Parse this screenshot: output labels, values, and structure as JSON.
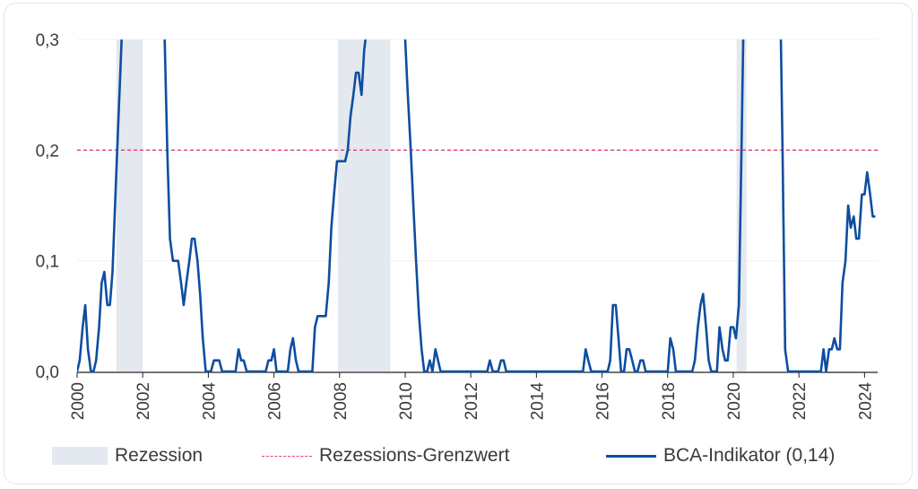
{
  "chart_data": {
    "type": "line",
    "title": "",
    "xlabel": "",
    "ylabel": "",
    "ylim": [
      0,
      0.3
    ],
    "xlim": [
      2000,
      2024.4
    ],
    "y_ticks": [
      "0,0",
      "0,1",
      "0,2",
      "0,3"
    ],
    "x_ticks": [
      "2000",
      "2002",
      "2004",
      "2006",
      "2008",
      "2010",
      "2012",
      "2014",
      "2016",
      "2018",
      "2020",
      "2022",
      "2024"
    ],
    "threshold": {
      "name": "Rezessions-Grenzwert",
      "value": 0.2,
      "color": "#e0436b"
    },
    "recessions": {
      "name": "Rezession",
      "color": "#e4e8ef",
      "periods": [
        [
          2001.2,
          2002.0
        ],
        [
          2007.95,
          2009.55
        ],
        [
          2020.1,
          2020.4
        ]
      ]
    },
    "series": [
      {
        "name": "BCA-Indikator (0,14)",
        "color": "#0d4ea0",
        "points": [
          [
            2000.0,
            0.0
          ],
          [
            2000.08,
            0.01
          ],
          [
            2000.17,
            0.04
          ],
          [
            2000.25,
            0.06
          ],
          [
            2000.33,
            0.02
          ],
          [
            2000.42,
            0.0
          ],
          [
            2000.5,
            0.0
          ],
          [
            2000.58,
            0.01
          ],
          [
            2000.67,
            0.04
          ],
          [
            2000.75,
            0.08
          ],
          [
            2000.83,
            0.09
          ],
          [
            2000.92,
            0.06
          ],
          [
            2001.0,
            0.06
          ],
          [
            2001.08,
            0.09
          ],
          [
            2001.17,
            0.16
          ],
          [
            2001.25,
            0.22
          ],
          [
            2001.33,
            0.28
          ],
          [
            2001.42,
            0.35
          ],
          [
            2002.5,
            0.4
          ],
          [
            2002.67,
            0.3
          ],
          [
            2002.75,
            0.2
          ],
          [
            2002.83,
            0.12
          ],
          [
            2002.92,
            0.1
          ],
          [
            2003.0,
            0.1
          ],
          [
            2003.08,
            0.1
          ],
          [
            2003.17,
            0.08
          ],
          [
            2003.25,
            0.06
          ],
          [
            2003.33,
            0.08
          ],
          [
            2003.42,
            0.1
          ],
          [
            2003.5,
            0.12
          ],
          [
            2003.58,
            0.12
          ],
          [
            2003.67,
            0.1
          ],
          [
            2003.75,
            0.07
          ],
          [
            2003.83,
            0.03
          ],
          [
            2003.92,
            0.0
          ],
          [
            2004.0,
            0.0
          ],
          [
            2004.08,
            0.0
          ],
          [
            2004.17,
            0.01
          ],
          [
            2004.25,
            0.01
          ],
          [
            2004.33,
            0.01
          ],
          [
            2004.42,
            0.0
          ],
          [
            2004.5,
            0.0
          ],
          [
            2004.58,
            0.0
          ],
          [
            2004.67,
            0.0
          ],
          [
            2004.75,
            0.0
          ],
          [
            2004.83,
            0.0
          ],
          [
            2004.92,
            0.02
          ],
          [
            2005.0,
            0.01
          ],
          [
            2005.08,
            0.01
          ],
          [
            2005.17,
            0.0
          ],
          [
            2005.25,
            0.0
          ],
          [
            2005.33,
            0.0
          ],
          [
            2005.42,
            0.0
          ],
          [
            2005.5,
            0.0
          ],
          [
            2005.58,
            0.0
          ],
          [
            2005.67,
            0.0
          ],
          [
            2005.75,
            0.0
          ],
          [
            2005.83,
            0.01
          ],
          [
            2005.92,
            0.01
          ],
          [
            2006.0,
            0.02
          ],
          [
            2006.08,
            0.0
          ],
          [
            2006.17,
            0.0
          ],
          [
            2006.25,
            0.0
          ],
          [
            2006.33,
            0.0
          ],
          [
            2006.42,
            0.0
          ],
          [
            2006.5,
            0.02
          ],
          [
            2006.58,
            0.03
          ],
          [
            2006.67,
            0.01
          ],
          [
            2006.75,
            0.0
          ],
          [
            2006.83,
            0.0
          ],
          [
            2006.92,
            0.0
          ],
          [
            2007.0,
            0.0
          ],
          [
            2007.08,
            0.0
          ],
          [
            2007.17,
            0.0
          ],
          [
            2007.25,
            0.04
          ],
          [
            2007.33,
            0.05
          ],
          [
            2007.42,
            0.05
          ],
          [
            2007.5,
            0.05
          ],
          [
            2007.58,
            0.05
          ],
          [
            2007.67,
            0.08
          ],
          [
            2007.75,
            0.13
          ],
          [
            2007.83,
            0.16
          ],
          [
            2007.92,
            0.19
          ],
          [
            2008.0,
            0.19
          ],
          [
            2008.08,
            0.19
          ],
          [
            2008.17,
            0.19
          ],
          [
            2008.25,
            0.2
          ],
          [
            2008.33,
            0.23
          ],
          [
            2008.42,
            0.25
          ],
          [
            2008.5,
            0.27
          ],
          [
            2008.58,
            0.27
          ],
          [
            2008.67,
            0.25
          ],
          [
            2008.75,
            0.29
          ],
          [
            2008.83,
            0.31
          ],
          [
            2009.9,
            0.4
          ],
          [
            2010.0,
            0.3
          ],
          [
            2010.08,
            0.25
          ],
          [
            2010.17,
            0.2
          ],
          [
            2010.25,
            0.15
          ],
          [
            2010.33,
            0.1
          ],
          [
            2010.42,
            0.05
          ],
          [
            2010.5,
            0.02
          ],
          [
            2010.58,
            0.0
          ],
          [
            2010.67,
            0.0
          ],
          [
            2010.75,
            0.01
          ],
          [
            2010.83,
            0.0
          ],
          [
            2010.92,
            0.02
          ],
          [
            2011.0,
            0.01
          ],
          [
            2011.08,
            0.0
          ],
          [
            2011.5,
            0.0
          ],
          [
            2012.0,
            0.0
          ],
          [
            2012.5,
            0.0
          ],
          [
            2012.58,
            0.01
          ],
          [
            2012.67,
            0.0
          ],
          [
            2012.83,
            0.0
          ],
          [
            2012.92,
            0.01
          ],
          [
            2013.0,
            0.01
          ],
          [
            2013.08,
            0.0
          ],
          [
            2013.5,
            0.0
          ],
          [
            2014.0,
            0.0
          ],
          [
            2014.5,
            0.0
          ],
          [
            2015.0,
            0.0
          ],
          [
            2015.42,
            0.0
          ],
          [
            2015.5,
            0.02
          ],
          [
            2015.58,
            0.01
          ],
          [
            2015.67,
            0.0
          ],
          [
            2015.75,
            0.0
          ],
          [
            2016.0,
            0.0
          ],
          [
            2016.17,
            0.0
          ],
          [
            2016.25,
            0.01
          ],
          [
            2016.33,
            0.06
          ],
          [
            2016.42,
            0.06
          ],
          [
            2016.5,
            0.03
          ],
          [
            2016.58,
            0.0
          ],
          [
            2016.67,
            0.0
          ],
          [
            2016.75,
            0.02
          ],
          [
            2016.83,
            0.02
          ],
          [
            2016.92,
            0.01
          ],
          [
            2017.0,
            0.0
          ],
          [
            2017.08,
            0.0
          ],
          [
            2017.17,
            0.01
          ],
          [
            2017.25,
            0.01
          ],
          [
            2017.33,
            0.0
          ],
          [
            2017.5,
            0.0
          ],
          [
            2017.75,
            0.0
          ],
          [
            2017.92,
            0.0
          ],
          [
            2018.0,
            0.0
          ],
          [
            2018.08,
            0.03
          ],
          [
            2018.17,
            0.02
          ],
          [
            2018.25,
            0.0
          ],
          [
            2018.33,
            0.0
          ],
          [
            2018.5,
            0.0
          ],
          [
            2018.75,
            0.0
          ],
          [
            2018.83,
            0.01
          ],
          [
            2018.92,
            0.04
          ],
          [
            2019.0,
            0.06
          ],
          [
            2019.08,
            0.07
          ],
          [
            2019.17,
            0.04
          ],
          [
            2019.25,
            0.01
          ],
          [
            2019.33,
            0.0
          ],
          [
            2019.42,
            0.0
          ],
          [
            2019.5,
            0.0
          ],
          [
            2019.58,
            0.04
          ],
          [
            2019.67,
            0.02
          ],
          [
            2019.75,
            0.01
          ],
          [
            2019.83,
            0.01
          ],
          [
            2019.92,
            0.04
          ],
          [
            2020.0,
            0.04
          ],
          [
            2020.08,
            0.03
          ],
          [
            2020.17,
            0.06
          ],
          [
            2020.25,
            0.2
          ],
          [
            2020.33,
            0.35
          ],
          [
            2021.4,
            0.4
          ],
          [
            2021.5,
            0.2
          ],
          [
            2021.58,
            0.02
          ],
          [
            2021.67,
            0.0
          ],
          [
            2021.75,
            0.0
          ],
          [
            2022.0,
            0.0
          ],
          [
            2022.25,
            0.0
          ],
          [
            2022.5,
            0.0
          ],
          [
            2022.67,
            0.0
          ],
          [
            2022.75,
            0.02
          ],
          [
            2022.83,
            0.0
          ],
          [
            2022.92,
            0.02
          ],
          [
            2023.0,
            0.02
          ],
          [
            2023.08,
            0.03
          ],
          [
            2023.17,
            0.02
          ],
          [
            2023.25,
            0.02
          ],
          [
            2023.33,
            0.08
          ],
          [
            2023.42,
            0.1
          ],
          [
            2023.5,
            0.15
          ],
          [
            2023.58,
            0.13
          ],
          [
            2023.67,
            0.14
          ],
          [
            2023.75,
            0.12
          ],
          [
            2023.83,
            0.12
          ],
          [
            2023.92,
            0.16
          ],
          [
            2024.0,
            0.16
          ],
          [
            2024.08,
            0.18
          ],
          [
            2024.17,
            0.16
          ],
          [
            2024.25,
            0.14
          ],
          [
            2024.33,
            0.14
          ]
        ]
      }
    ],
    "legend": {
      "position": "bottom",
      "items": [
        "Rezession",
        "Rezessions-Grenzwert",
        "BCA-Indikator (0,14)"
      ]
    }
  }
}
